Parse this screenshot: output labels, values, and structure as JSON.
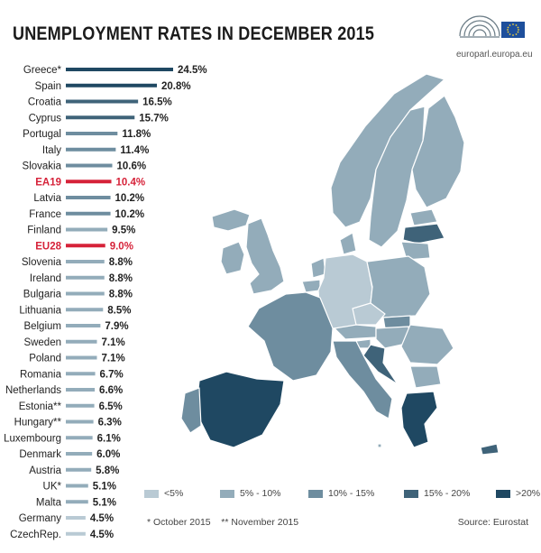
{
  "header": {
    "title": "UNEMPLOYMENT RATES IN DECEMBER 2015",
    "site": "europarl.europa.eu"
  },
  "chart_data": {
    "type": "bar",
    "title": "UNEMPLOYMENT RATES IN DECEMBER 2015",
    "unit": "%",
    "orientation": "horizontal",
    "categories": [
      "Greece*",
      "Spain",
      "Croatia",
      "Cyprus",
      "Portugal",
      "Italy",
      "Slovakia",
      "EA19",
      "Latvia",
      "France",
      "Finland",
      "EU28",
      "Slovenia",
      "Ireland",
      "Bulgaria",
      "Lithuania",
      "Belgium",
      "Sweden",
      "Poland",
      "Romania",
      "Netherlands",
      "Estonia**",
      "Hungary**",
      "Luxembourg",
      "Denmark",
      "Austria",
      "UK*",
      "Malta",
      "Germany",
      "CzechRep."
    ],
    "values": [
      24.5,
      20.8,
      16.5,
      15.7,
      11.8,
      11.4,
      10.6,
      10.4,
      10.2,
      10.2,
      9.5,
      9.0,
      8.8,
      8.8,
      8.8,
      8.5,
      7.9,
      7.1,
      7.1,
      6.7,
      6.6,
      6.5,
      6.3,
      6.1,
      6.0,
      5.8,
      5.1,
      5.1,
      4.5,
      4.5
    ],
    "value_labels": [
      "24.5%",
      "20.8%",
      "16.5%",
      "15.7%",
      "11.8%",
      "11.4%",
      "10.6%",
      "10.4%",
      "10.2%",
      "10.2%",
      "9.5%",
      "9.0%",
      "8.8%",
      "8.8%",
      "8.8%",
      "8.5%",
      "7.9%",
      "7.1%",
      "7.1%",
      "6.7%",
      "6.6%",
      "6.5%",
      "6.3%",
      "6.1%",
      "6.0%",
      "5.8%",
      "5.1%",
      "5.1%",
      "4.5%",
      "4.5%"
    ],
    "highlighted": [
      "EA19",
      "EU28"
    ],
    "highlight_color": "#d62239",
    "xlim": [
      0,
      24.5
    ]
  },
  "legend": [
    {
      "label": "<5%",
      "color": "#b9cad4"
    },
    {
      "label": "5% - 10%",
      "color": "#93acba"
    },
    {
      "label": "10% - 15%",
      "color": "#6e8d9f"
    },
    {
      "label": "15% - 20%",
      "color": "#3f6379"
    },
    {
      "label": ">20%",
      "color": "#1f4862"
    }
  ],
  "footnote": "* October 2015    ** November 2015",
  "source": "Source: Eurostat"
}
